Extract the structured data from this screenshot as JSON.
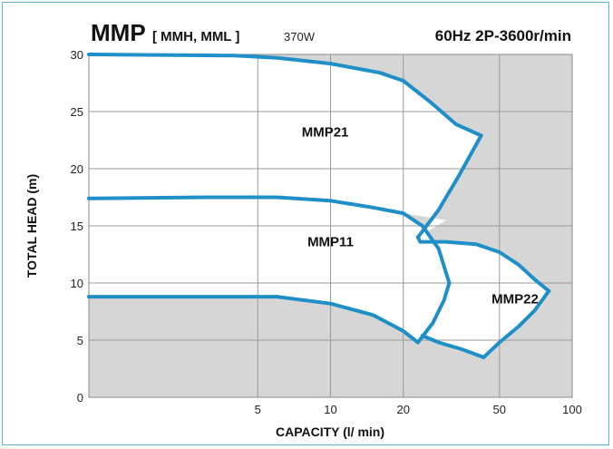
{
  "chart_data": {
    "type": "line",
    "title": "MMP",
    "title_models": "[ MMH, MML ]",
    "power": "370W",
    "spec": "60Hz 2P-3600r/min",
    "xlabel": "CAPACITY (l/ min)",
    "ylabel": "TOTAL HEAD (m)",
    "x_scale": "log",
    "xlim": [
      1,
      100
    ],
    "ylim": [
      0,
      30
    ],
    "x_ticks": [
      "5",
      "10",
      "20",
      "50",
      "100"
    ],
    "y_ticks": [
      "0",
      "5",
      "10",
      "15",
      "20",
      "25",
      "30"
    ],
    "grid": true,
    "colors": {
      "curve": "#1f8fc8",
      "background": "#d6d6d6",
      "region": "#ffffff",
      "grid": "#9a9a9a"
    },
    "regions": [
      {
        "name": "MMP21",
        "label_at": [
          9.5,
          22.8
        ],
        "boundary": [
          [
            1,
            30
          ],
          [
            4,
            29.9
          ],
          [
            6,
            29.7
          ],
          [
            10,
            29.2
          ],
          [
            16,
            28.4
          ],
          [
            20,
            27.7
          ],
          [
            26,
            25.8
          ],
          [
            33,
            23.9
          ],
          [
            42,
            22.9
          ],
          [
            34,
            19.4
          ],
          [
            28,
            16.4
          ],
          [
            23,
            14.0
          ],
          [
            30,
            15.5
          ],
          [
            20,
            16.1
          ],
          [
            15,
            16.6
          ],
          [
            10,
            17.2
          ],
          [
            6,
            17.5
          ],
          [
            3,
            17.5
          ],
          [
            1,
            17.4
          ]
        ]
      },
      {
        "name": "MMP11",
        "label_at": [
          10,
          13.2
        ],
        "boundary": [
          [
            1,
            17.4
          ],
          [
            3,
            17.5
          ],
          [
            6,
            17.5
          ],
          [
            10,
            17.2
          ],
          [
            15,
            16.6
          ],
          [
            20,
            16.1
          ],
          [
            24,
            15.0
          ],
          [
            28,
            13.0
          ],
          [
            31,
            10.0
          ],
          [
            29.5,
            8.5
          ],
          [
            26.5,
            6.5
          ],
          [
            23,
            4.8
          ],
          [
            22,
            5.0
          ],
          [
            20,
            5.8
          ],
          [
            15,
            7.2
          ],
          [
            10,
            8.2
          ],
          [
            6,
            8.8
          ],
          [
            1,
            8.8
          ]
        ]
      },
      {
        "name": "MMP22",
        "label_at": [
          58,
          8.2
        ],
        "boundary": [
          [
            23,
            14.0
          ],
          [
            23.5,
            13.6
          ],
          [
            30,
            13.6
          ],
          [
            40,
            13.4
          ],
          [
            50,
            12.7
          ],
          [
            60,
            11.6
          ],
          [
            70,
            10.3
          ],
          [
            80,
            9.3
          ],
          [
            70,
            7.6
          ],
          [
            60,
            6.2
          ],
          [
            50,
            4.8
          ],
          [
            43,
            3.5
          ],
          [
            35,
            4.2
          ],
          [
            28,
            4.8
          ],
          [
            24,
            5.4
          ],
          [
            23,
            4.8
          ],
          [
            26.5,
            6.5
          ],
          [
            29.5,
            8.5
          ],
          [
            31,
            10.0
          ],
          [
            28,
            13.0
          ]
        ]
      }
    ],
    "curves": [
      {
        "points": [
          [
            1,
            30
          ],
          [
            4,
            29.9
          ],
          [
            6,
            29.7
          ],
          [
            10,
            29.2
          ],
          [
            16,
            28.4
          ],
          [
            20,
            27.7
          ],
          [
            26,
            25.8
          ],
          [
            33,
            23.9
          ],
          [
            42,
            22.9
          ]
        ]
      },
      {
        "points": [
          [
            1,
            17.4
          ],
          [
            3,
            17.5
          ],
          [
            6,
            17.5
          ],
          [
            10,
            17.2
          ],
          [
            15,
            16.6
          ],
          [
            20,
            16.1
          ],
          [
            24,
            15.0
          ],
          [
            28,
            13.0
          ],
          [
            31,
            10.0
          ]
        ]
      },
      {
        "points": [
          [
            1,
            8.8
          ],
          [
            6,
            8.8
          ],
          [
            10,
            8.2
          ],
          [
            15,
            7.2
          ],
          [
            20,
            5.8
          ],
          [
            23,
            4.8
          ]
        ]
      },
      {
        "points": [
          [
            42,
            22.9
          ],
          [
            34,
            19.4
          ],
          [
            28,
            16.4
          ],
          [
            23,
            14.0
          ]
        ]
      },
      {
        "points": [
          [
            31,
            10.0
          ],
          [
            29.5,
            8.5
          ],
          [
            26.5,
            6.5
          ],
          [
            23,
            4.8
          ]
        ]
      },
      {
        "points": [
          [
            23,
            14.0
          ],
          [
            23.5,
            13.6
          ],
          [
            30,
            13.6
          ],
          [
            40,
            13.4
          ],
          [
            50,
            12.7
          ],
          [
            60,
            11.6
          ],
          [
            70,
            10.3
          ],
          [
            80,
            9.3
          ]
        ]
      },
      {
        "points": [
          [
            80,
            9.3
          ],
          [
            70,
            7.6
          ],
          [
            60,
            6.2
          ],
          [
            50,
            4.8
          ],
          [
            43,
            3.5
          ]
        ]
      },
      {
        "points": [
          [
            24,
            5.4
          ],
          [
            28,
            4.8
          ],
          [
            35,
            4.2
          ],
          [
            43,
            3.5
          ]
        ]
      }
    ]
  }
}
